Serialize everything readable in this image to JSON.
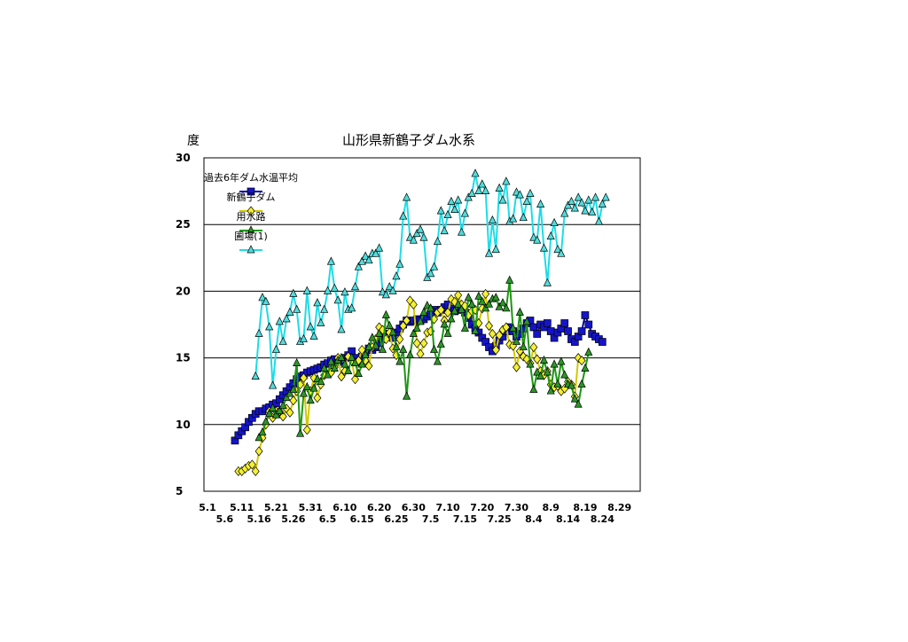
{
  "chart_data": {
    "type": "line",
    "title": "山形県新鶴子ダム水系",
    "ylabel": "度",
    "xlabel": "",
    "ylim": [
      5,
      30
    ],
    "yticks": [
      5,
      10,
      15,
      20,
      25,
      30
    ],
    "grid": true,
    "legend_position": "top-left",
    "x_range": [
      "5.1",
      "9.3"
    ],
    "xticks_row1": [
      "5.1",
      "5.11",
      "5.21",
      "5.31",
      "6.10",
      "6.20",
      "6.30",
      "7.10",
      "7.20",
      "7.30",
      "8.9",
      "8.19",
      "8.29"
    ],
    "xticks_row2": [
      "5.6",
      "5.16",
      "5.26",
      "6.5",
      "6.15",
      "6.25",
      "7.5",
      "7.15",
      "7.25",
      "8.4",
      "8.14",
      "8.24"
    ],
    "series": [
      {
        "name": "過去6年ダム水温平均",
        "color": "#1414c8",
        "line_color": "#0000aa",
        "marker": "square",
        "start": "5.9",
        "values": [
          8.8,
          9.2,
          9.5,
          9.8,
          10.2,
          10.5,
          10.8,
          11.0,
          11.0,
          11.2,
          11.3,
          11.5,
          11.6,
          11.9,
          12.2,
          12.5,
          12.8,
          13.1,
          13.4,
          13.6,
          13.7,
          13.9,
          14.0,
          14.1,
          14.2,
          14.3,
          14.5,
          14.6,
          14.8,
          14.9,
          14.8,
          14.7,
          15.0,
          15.2,
          15.5,
          15.0,
          14.7,
          15.1,
          15.4,
          15.7,
          15.6,
          15.8,
          16.1,
          16.4,
          16.6,
          16.8,
          16.5,
          16.9,
          17.2,
          17.5,
          17.8,
          17.7,
          17.8,
          17.9,
          17.8,
          17.9,
          18.1,
          18.3,
          18.6,
          18.4,
          18.6,
          18.8,
          19.0,
          18.7,
          18.5,
          18.8,
          18.6,
          18.4,
          18.0,
          17.5,
          17.2,
          16.9,
          16.5,
          16.2,
          15.8,
          15.5,
          15.9,
          16.3,
          16.6,
          17.0,
          17.3,
          17.0,
          16.6,
          16.8,
          17.2,
          17.6,
          17.8,
          17.3,
          16.8,
          17.5,
          17.3,
          17.6,
          17.0,
          16.5,
          16.9,
          17.2,
          17.6,
          17.0,
          16.4,
          16.2,
          16.6,
          17.0,
          18.2,
          17.5,
          16.8,
          16.6,
          16.4,
          16.2
        ]
      },
      {
        "name": "新鶴子ダム",
        "color": "#f5f032",
        "line_color": "#d2c800",
        "marker": "diamond",
        "start": "5.10",
        "values": [
          6.5,
          6.5,
          6.7,
          6.9,
          7.0,
          6.5,
          8.0,
          9.0,
          10.0,
          11.0,
          10.5,
          11.0,
          11.0,
          10.6,
          11.2,
          10.9,
          11.8,
          12.5,
          13.0,
          13.5,
          9.6,
          12.5,
          13.5,
          12.0,
          13.0,
          13.7,
          14.0,
          13.9,
          14.3,
          15.0,
          13.6,
          14.0,
          15.1,
          14.8,
          13.4,
          14.8,
          15.6,
          14.8,
          14.4,
          15.8,
          16.4,
          17.3,
          17.1,
          16.4,
          16.9,
          15.7,
          15.2,
          16.4,
          17.4,
          17.8,
          19.3,
          19.0,
          16.1,
          15.3,
          16.1,
          16.9,
          17.0,
          17.9,
          18.4,
          18.6,
          17.8,
          18.4,
          19.4,
          19.2,
          19.7,
          19.0,
          18.9,
          18.2,
          18.5,
          18.6,
          17.6,
          18.7,
          19.8,
          17.4,
          16.8,
          15.6,
          16.7,
          17.1,
          17.3,
          16.0,
          15.9,
          14.3,
          15.5,
          15.1,
          14.9,
          14.6,
          15.8,
          14.9,
          14.0,
          13.7,
          14.0,
          13.0,
          12.8,
          12.9,
          12.5,
          12.7,
          13.2,
          13.0,
          12.1,
          15.0,
          14.8
        ]
      },
      {
        "name": "用水路",
        "color": "#2d9628",
        "line_color": "#1e9614",
        "marker": "triangle",
        "start": "5.16",
        "values": [
          9.0,
          9.4,
          10.2,
          10.8,
          11.2,
          10.7,
          11.0,
          11.4,
          12.0,
          12.3,
          12.6,
          14.6,
          9.3,
          12.3,
          12.8,
          11.8,
          12.7,
          13.4,
          13.2,
          14.2,
          13.7,
          14.7,
          14.2,
          14.8,
          15.0,
          14.5,
          14.0,
          15.0,
          14.6,
          13.8,
          14.5,
          15.2,
          15.8,
          16.5,
          15.9,
          16.8,
          15.6,
          18.2,
          17.4,
          16.9,
          15.8,
          14.7,
          15.6,
          12.1,
          15.2,
          16.8,
          17.2,
          17.7,
          18.4,
          18.9,
          18.7,
          15.6,
          14.7,
          16.0,
          17.5,
          16.8,
          17.9,
          18.5,
          19.0,
          18.6,
          17.2,
          19.5,
          19.0,
          17.0,
          19.6,
          19.2,
          18.7,
          19.0,
          19.4,
          19.5,
          18.8,
          19.1,
          18.7,
          20.8,
          17.2,
          16.2,
          18.4,
          15.8,
          17.7,
          14.5,
          12.6,
          13.9,
          13.6,
          14.8,
          13.9,
          12.5,
          14.5,
          13.0,
          14.7,
          13.7,
          13.0,
          12.9,
          11.9,
          11.5,
          13.0,
          14.2,
          15.4
        ]
      },
      {
        "name": "圃場(1)",
        "color": "#50dcdc",
        "line_color": "#1edce6",
        "marker": "triangle",
        "start": "5.15",
        "values": [
          13.6,
          16.8,
          19.5,
          19.2,
          17.3,
          12.9,
          15.6,
          17.7,
          16.2,
          17.9,
          18.4,
          19.8,
          18.6,
          16.2,
          16.4,
          20.0,
          17.3,
          16.6,
          19.1,
          17.6,
          18.6,
          20.0,
          22.2,
          20.2,
          19.3,
          17.1,
          19.9,
          18.6,
          18.7,
          20.3,
          21.8,
          22.2,
          22.6,
          22.3,
          22.8,
          22.8,
          23.2,
          19.9,
          19.7,
          20.3,
          20.0,
          21.1,
          22.0,
          25.6,
          27.0,
          24.0,
          23.8,
          24.3,
          24.6,
          24.0,
          21.0,
          21.3,
          21.8,
          23.7,
          26.0,
          24.5,
          25.7,
          26.7,
          26.1,
          26.8,
          24.4,
          25.8,
          27.0,
          27.3,
          28.8,
          27.5,
          28.0,
          27.5,
          22.8,
          25.3,
          23.1,
          27.7,
          26.8,
          28.2,
          25.2,
          25.4,
          27.4,
          27.2,
          25.5,
          26.7,
          27.3,
          24.0,
          23.8,
          26.5,
          23.2,
          20.6,
          24.1,
          25.1,
          23.1,
          22.8,
          25.8,
          26.4,
          26.7,
          26.2,
          27.0,
          26.6,
          26.0,
          26.8,
          25.9,
          27.0,
          25.2,
          26.5,
          27.0
        ]
      }
    ]
  }
}
